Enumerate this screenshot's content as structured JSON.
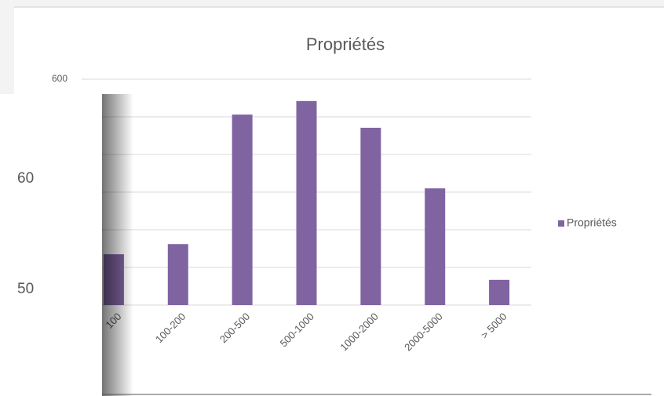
{
  "chart_data": {
    "type": "bar",
    "title": "Propriétés",
    "categories": [
      "100",
      "100-200",
      "200-500",
      "500-1000",
      "1000-2000",
      "2000-5000",
      "> 5000"
    ],
    "series": [
      {
        "name": "Propriétés",
        "color": "#8064a2",
        "values": [
          135,
          162,
          506,
          542,
          471,
          310,
          67
        ]
      }
    ],
    "ylim": [
      0,
      600
    ],
    "yticks": [
      0,
      100,
      200,
      300,
      400,
      500,
      600
    ],
    "grid": true,
    "legend": "right"
  },
  "overlay": {
    "labels": [
      "60",
      "50"
    ]
  }
}
